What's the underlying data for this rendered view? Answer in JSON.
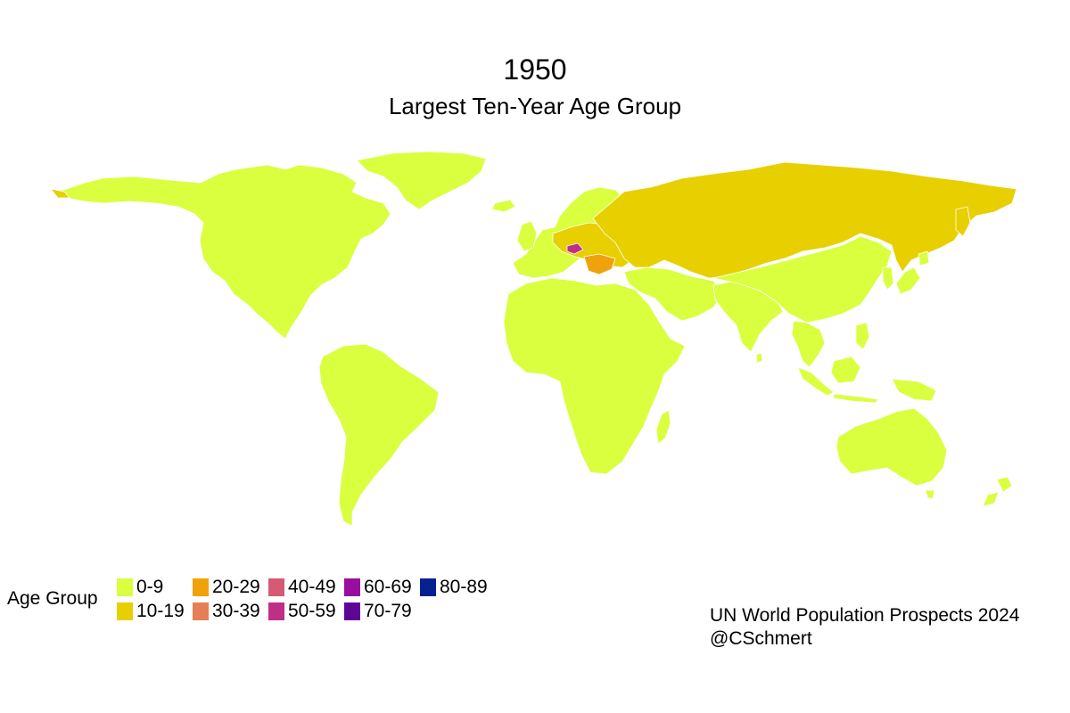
{
  "title": "1950",
  "subtitle": "Largest Ten-Year Age Group",
  "legend": {
    "title": "Age Group",
    "items": [
      {
        "label": "0-9",
        "color": "#d9ff3f"
      },
      {
        "label": "10-19",
        "color": "#e8cf00"
      },
      {
        "label": "20-29",
        "color": "#f0a20d"
      },
      {
        "label": "30-39",
        "color": "#e57f55"
      },
      {
        "label": "40-49",
        "color": "#d65a73"
      },
      {
        "label": "50-59",
        "color": "#c02f86"
      },
      {
        "label": "60-69",
        "color": "#990ea0"
      },
      {
        "label": "70-79",
        "color": "#5f0596"
      },
      {
        "label": "80-89",
        "color": "#052290"
      }
    ]
  },
  "caption": {
    "line1": "UN World Population Prospects 2024",
    "line2": "@CSchmert"
  },
  "map": {
    "regions": [
      {
        "name": "north-america",
        "group": "0-9"
      },
      {
        "name": "greenland",
        "group": "0-9"
      },
      {
        "name": "south-america",
        "group": "0-9"
      },
      {
        "name": "africa",
        "group": "0-9"
      },
      {
        "name": "western-europe",
        "group": "0-9"
      },
      {
        "name": "soviet-union",
        "group": "10-19"
      },
      {
        "name": "eastern-europe",
        "group": "10-19"
      },
      {
        "name": "balkans",
        "group": "20-29"
      },
      {
        "name": "hungary",
        "group": "50-59"
      },
      {
        "name": "middle-east",
        "group": "0-9"
      },
      {
        "name": "south-asia",
        "group": "0-9"
      },
      {
        "name": "east-asia",
        "group": "0-9"
      },
      {
        "name": "southeast-asia",
        "group": "0-9"
      },
      {
        "name": "australia",
        "group": "0-9"
      },
      {
        "name": "new-zealand",
        "group": "0-9"
      },
      {
        "name": "madagascar",
        "group": "0-9"
      },
      {
        "name": "japan",
        "group": "0-9"
      }
    ]
  }
}
